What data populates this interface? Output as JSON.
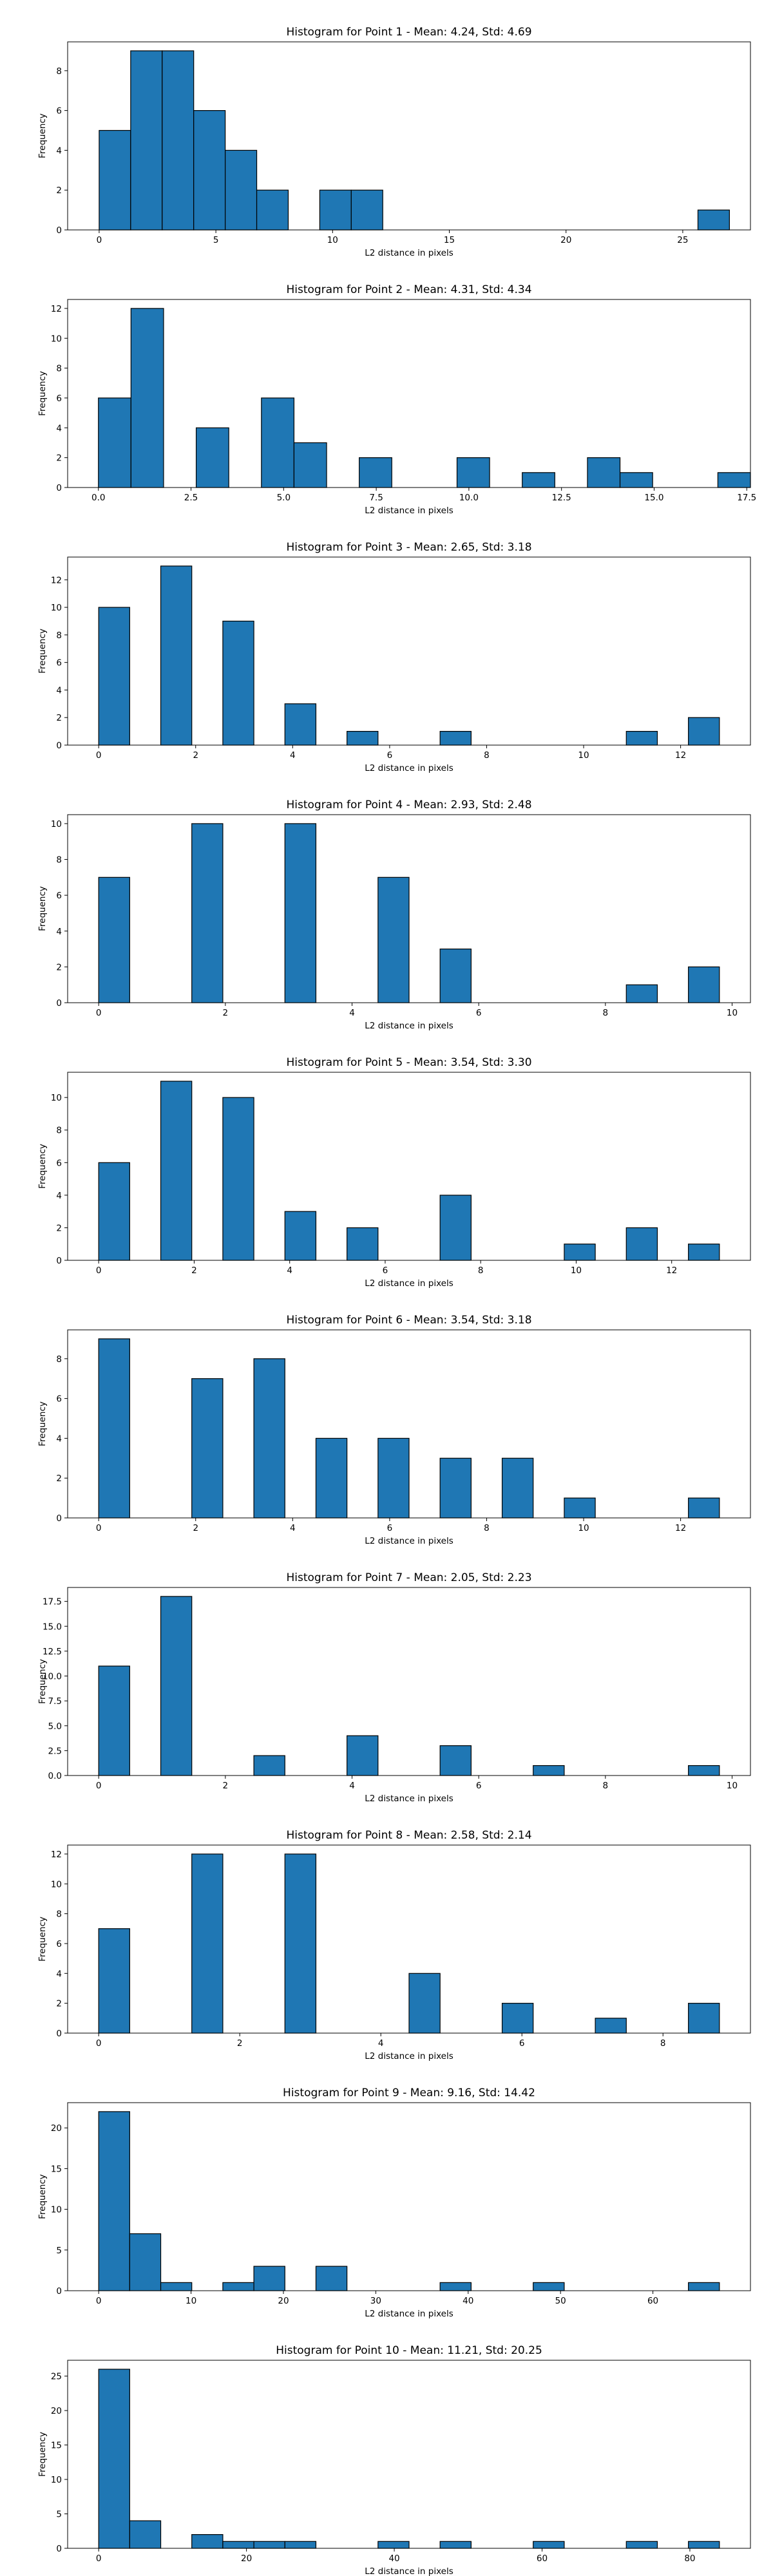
{
  "chart_data": [
    {
      "type": "bar",
      "title": "Histogram for Point 1 - Mean: 4.24, Std: 4.69",
      "xlabel": "L2 distance in pixels",
      "ylabel": "Frequency",
      "bar_color": "#1f77b4",
      "edge_color": "#000000",
      "xlim": [
        -1.35,
        27.9
      ],
      "ylim": [
        0,
        9.45
      ],
      "xticks": [
        0,
        5,
        10,
        15,
        20,
        25
      ],
      "yticks": [
        0,
        2,
        4,
        6,
        8
      ],
      "bin_edges": [
        0,
        1.35,
        2.7,
        4.05,
        5.4,
        6.75,
        8.1,
        9.45,
        10.8,
        12.15,
        13.5,
        14.85,
        16.2,
        17.55,
        18.9,
        20.25,
        21.6,
        22.95,
        24.3,
        25.65,
        27.0
      ],
      "values": [
        5,
        9,
        9,
        6,
        4,
        2,
        0,
        2,
        2,
        0,
        0,
        0,
        0,
        0,
        0,
        0,
        0,
        0,
        0,
        1
      ]
    },
    {
      "type": "bar",
      "title": "Histogram for Point 2 - Mean: 4.31, Std: 4.34",
      "xlabel": "L2 distance in pixels",
      "ylabel": "Frequency",
      "bar_color": "#1f77b4",
      "edge_color": "#000000",
      "xlim": [
        -0.83,
        17.6
      ],
      "ylim": [
        0,
        12.6
      ],
      "xticks": [
        0.0,
        2.5,
        5.0,
        7.5,
        10.0,
        12.5,
        15.0,
        17.5
      ],
      "xtick_labels": [
        "0.0",
        "2.5",
        "5.0",
        "7.5",
        "10.0",
        "12.5",
        "15.0",
        "17.5"
      ],
      "yticks": [
        0,
        2,
        4,
        6,
        8,
        10,
        12
      ],
      "bin_edges": [
        0,
        0.88,
        1.76,
        2.64,
        3.52,
        4.4,
        5.28,
        6.16,
        7.04,
        7.92,
        8.8,
        9.68,
        10.56,
        11.44,
        12.32,
        13.2,
        14.08,
        14.96,
        15.84,
        16.72,
        17.6
      ],
      "values": [
        6,
        12,
        0,
        4,
        0,
        6,
        3,
        0,
        2,
        0,
        0,
        2,
        0,
        1,
        0,
        2,
        1,
        0,
        0,
        1
      ]
    },
    {
      "type": "bar",
      "title": "Histogram for Point 3 - Mean: 2.65, Std: 3.18",
      "xlabel": "L2 distance in pixels",
      "ylabel": "Frequency",
      "bar_color": "#1f77b4",
      "edge_color": "#000000",
      "xlim": [
        -0.64,
        13.44
      ],
      "ylim": [
        0,
        13.65
      ],
      "xticks": [
        0,
        2,
        4,
        6,
        8,
        10,
        12
      ],
      "yticks": [
        0,
        2,
        4,
        6,
        8,
        10,
        12
      ],
      "bin_edges": [
        0,
        0.64,
        1.28,
        1.92,
        2.56,
        3.2,
        3.84,
        4.48,
        5.12,
        5.76,
        6.4,
        7.04,
        7.68,
        8.32,
        8.96,
        9.6,
        10.24,
        10.88,
        11.52,
        12.16,
        12.8
      ],
      "values": [
        10,
        0,
        13,
        0,
        9,
        0,
        3,
        0,
        1,
        0,
        0,
        1,
        0,
        0,
        0,
        0,
        0,
        1,
        0,
        2
      ]
    },
    {
      "type": "bar",
      "title": "Histogram for Point 4 - Mean: 2.93, Std: 2.48",
      "xlabel": "L2 distance in pixels",
      "ylabel": "Frequency",
      "bar_color": "#1f77b4",
      "edge_color": "#000000",
      "xlim": [
        -0.49,
        10.29
      ],
      "ylim": [
        0,
        10.5
      ],
      "xticks": [
        0,
        2,
        4,
        6,
        8,
        10
      ],
      "yticks": [
        0,
        2,
        4,
        6,
        8,
        10
      ],
      "bin_edges": [
        0,
        0.49,
        0.98,
        1.47,
        1.96,
        2.45,
        2.94,
        3.43,
        3.92,
        4.41,
        4.9,
        5.39,
        5.88,
        6.37,
        6.86,
        7.35,
        7.84,
        8.33,
        8.82,
        9.31,
        9.8
      ],
      "values": [
        7,
        0,
        0,
        10,
        0,
        0,
        10,
        0,
        0,
        7,
        0,
        3,
        0,
        0,
        0,
        0,
        0,
        1,
        0,
        2
      ]
    },
    {
      "type": "bar",
      "title": "Histogram for Point 5 - Mean: 3.54, Std: 3.30",
      "xlabel": "L2 distance in pixels",
      "ylabel": "Frequency",
      "bar_color": "#1f77b4",
      "edge_color": "#000000",
      "xlim": [
        -0.65,
        13.65
      ],
      "ylim": [
        0,
        11.55
      ],
      "xticks": [
        0,
        2,
        4,
        6,
        8,
        10,
        12
      ],
      "yticks": [
        0,
        2,
        4,
        6,
        8,
        10
      ],
      "bin_edges": [
        0,
        0.65,
        1.3,
        1.95,
        2.6,
        3.25,
        3.9,
        4.55,
        5.2,
        5.85,
        6.5,
        7.15,
        7.8,
        8.45,
        9.1,
        9.75,
        10.4,
        11.05,
        11.7,
        12.35,
        13.0
      ],
      "values": [
        6,
        0,
        11,
        0,
        10,
        0,
        3,
        0,
        2,
        0,
        0,
        4,
        0,
        0,
        0,
        1,
        0,
        2,
        0,
        1
      ]
    },
    {
      "type": "bar",
      "title": "Histogram for Point 6 - Mean: 3.54, Std: 3.18",
      "xlabel": "L2 distance in pixels",
      "ylabel": "Frequency",
      "bar_color": "#1f77b4",
      "edge_color": "#000000",
      "xlim": [
        -0.64,
        13.44
      ],
      "ylim": [
        0,
        9.45
      ],
      "xticks": [
        0,
        2,
        4,
        6,
        8,
        10,
        12
      ],
      "yticks": [
        0,
        2,
        4,
        6,
        8
      ],
      "bin_edges": [
        0,
        0.64,
        1.28,
        1.92,
        2.56,
        3.2,
        3.84,
        4.48,
        5.12,
        5.76,
        6.4,
        7.04,
        7.68,
        8.32,
        8.96,
        9.6,
        10.24,
        10.88,
        11.52,
        12.16,
        12.8
      ],
      "values": [
        9,
        0,
        0,
        7,
        0,
        8,
        0,
        4,
        0,
        4,
        0,
        3,
        0,
        3,
        0,
        1,
        0,
        0,
        0,
        1
      ]
    },
    {
      "type": "bar",
      "title": "Histogram for Point 7 - Mean: 2.05, Std: 2.23",
      "xlabel": "L2 distance in pixels",
      "ylabel": "Frequency",
      "bar_color": "#1f77b4",
      "edge_color": "#000000",
      "xlim": [
        -0.49,
        10.29
      ],
      "ylim": [
        0,
        18.9
      ],
      "xticks": [
        0,
        2,
        4,
        6,
        8,
        10
      ],
      "yticks": [
        0,
        2.5,
        5,
        7.5,
        10,
        12.5,
        15,
        17.5
      ],
      "ytick_labels": [
        "0.0",
        "2.5",
        "5.0",
        "7.5",
        "10.0",
        "12.5",
        "15.0",
        "17.5"
      ],
      "bin_edges": [
        0,
        0.49,
        0.98,
        1.47,
        1.96,
        2.45,
        2.94,
        3.43,
        3.92,
        4.41,
        4.9,
        5.39,
        5.88,
        6.37,
        6.86,
        7.35,
        7.84,
        8.33,
        8.82,
        9.31,
        9.8
      ],
      "values": [
        11,
        0,
        18,
        0,
        0,
        2,
        0,
        0,
        4,
        0,
        0,
        3,
        0,
        0,
        1,
        0,
        0,
        0,
        0,
        1
      ]
    },
    {
      "type": "bar",
      "title": "Histogram for Point 8 - Mean: 2.58, Std: 2.14",
      "xlabel": "L2 distance in pixels",
      "ylabel": "Frequency",
      "bar_color": "#1f77b4",
      "edge_color": "#000000",
      "xlim": [
        -0.44,
        9.24
      ],
      "ylim": [
        0,
        12.6
      ],
      "xticks": [
        0,
        2,
        4,
        6,
        8
      ],
      "yticks": [
        0,
        2,
        4,
        6,
        8,
        10,
        12
      ],
      "bin_edges": [
        0,
        0.44,
        0.88,
        1.32,
        1.76,
        2.2,
        2.64,
        3.08,
        3.52,
        3.96,
        4.4,
        4.84,
        5.28,
        5.72,
        6.16,
        6.6,
        7.04,
        7.48,
        7.92,
        8.36,
        8.8
      ],
      "values": [
        7,
        0,
        0,
        12,
        0,
        0,
        12,
        0,
        0,
        0,
        4,
        0,
        0,
        2,
        0,
        0,
        1,
        0,
        0,
        2
      ]
    },
    {
      "type": "bar",
      "title": "Histogram for Point 9 - Mean: 9.16, Std: 14.42",
      "xlabel": "L2 distance in pixels",
      "ylabel": "Frequency",
      "bar_color": "#1f77b4",
      "edge_color": "#000000",
      "xlim": [
        -3.36,
        70.56
      ],
      "ylim": [
        0,
        23.1
      ],
      "xticks": [
        0,
        10,
        20,
        30,
        40,
        50,
        60
      ],
      "yticks": [
        0,
        5,
        10,
        15,
        20
      ],
      "bin_edges": [
        0,
        3.36,
        6.72,
        10.08,
        13.44,
        16.8,
        20.16,
        23.52,
        26.88,
        30.24,
        33.6,
        36.96,
        40.32,
        43.68,
        47.04,
        50.4,
        53.76,
        57.12,
        60.48,
        63.84,
        67.2
      ],
      "values": [
        22,
        7,
        1,
        0,
        1,
        3,
        0,
        3,
        0,
        0,
        0,
        1,
        0,
        0,
        1,
        0,
        0,
        0,
        0,
        1
      ]
    },
    {
      "type": "bar",
      "title": "Histogram for Point 10 - Mean: 11.21, Std: 20.25",
      "xlabel": "L2 distance in pixels",
      "ylabel": "Frequency",
      "bar_color": "#1f77b4",
      "edge_color": "#000000",
      "xlim": [
        -4.2,
        88.2
      ],
      "ylim": [
        0,
        27.3
      ],
      "xticks": [
        0,
        20,
        40,
        60,
        80
      ],
      "yticks": [
        0,
        5,
        10,
        15,
        20,
        25
      ],
      "bin_edges": [
        0,
        4.2,
        8.4,
        12.6,
        16.8,
        21.0,
        25.2,
        29.4,
        33.6,
        37.8,
        42.0,
        46.2,
        50.4,
        54.6,
        58.8,
        63.0,
        67.2,
        71.4,
        75.6,
        79.8,
        84.0
      ],
      "values": [
        26,
        4,
        0,
        2,
        1,
        1,
        1,
        0,
        0,
        1,
        0,
        1,
        0,
        0,
        1,
        0,
        0,
        1,
        0,
        1
      ]
    }
  ]
}
